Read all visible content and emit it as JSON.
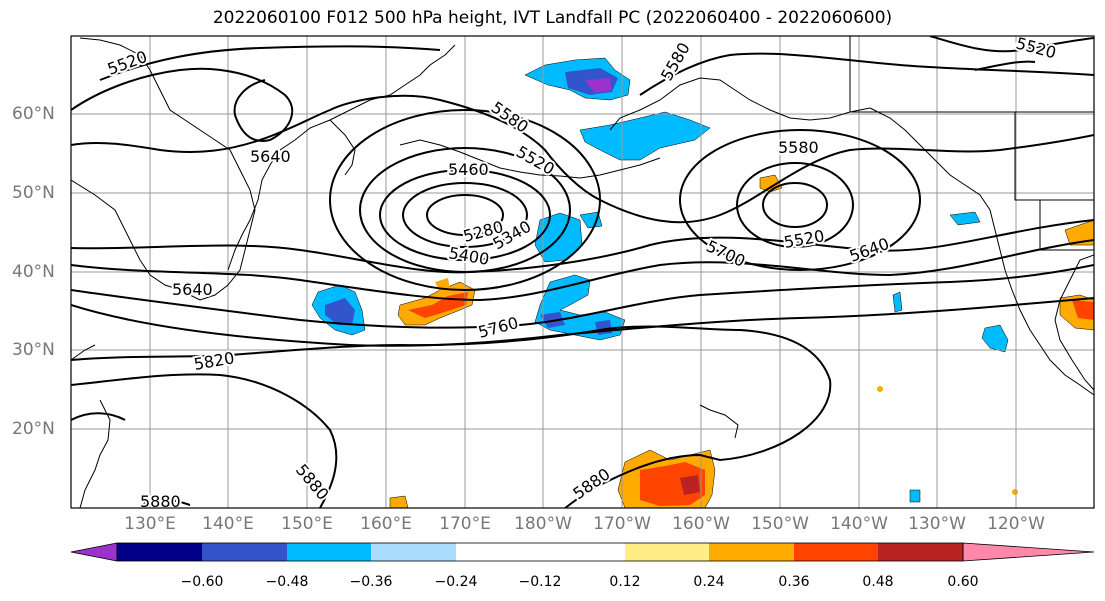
{
  "title": "2022060100 F012 500 hPa height, IVT Landfall PC (2022060400 - 2022060600)",
  "lon_labels": [
    "130°E",
    "140°E",
    "150°E",
    "160°E",
    "170°E",
    "180°W",
    "170°W",
    "160°W",
    "150°W",
    "140°W",
    "130°W",
    "120°W"
  ],
  "lat_labels": [
    "60°N",
    "50°N",
    "40°N",
    "30°N",
    "20°N"
  ],
  "contour_labels": [
    "5520",
    "5580",
    "5640",
    "5460",
    "5520",
    "5280",
    "5340",
    "5400",
    "5580",
    "5520",
    "5640",
    "5700",
    "5640",
    "5760",
    "5820",
    "5880",
    "5880",
    "5880",
    "5520",
    "5580"
  ],
  "colorbar": {
    "tick_labels": [
      "−0.60",
      "−0.48",
      "−0.36",
      "−0.24",
      "−0.12",
      "0.12",
      "0.24",
      "0.36",
      "0.48",
      "0.60"
    ],
    "colors": [
      "#9933cc",
      "#000088",
      "#3355cc",
      "#00bbff",
      "#aaddff",
      "#ffffff",
      "#ffee88",
      "#ffaa00",
      "#ff4400",
      "#bb2222",
      "#ff88aa"
    ]
  }
}
